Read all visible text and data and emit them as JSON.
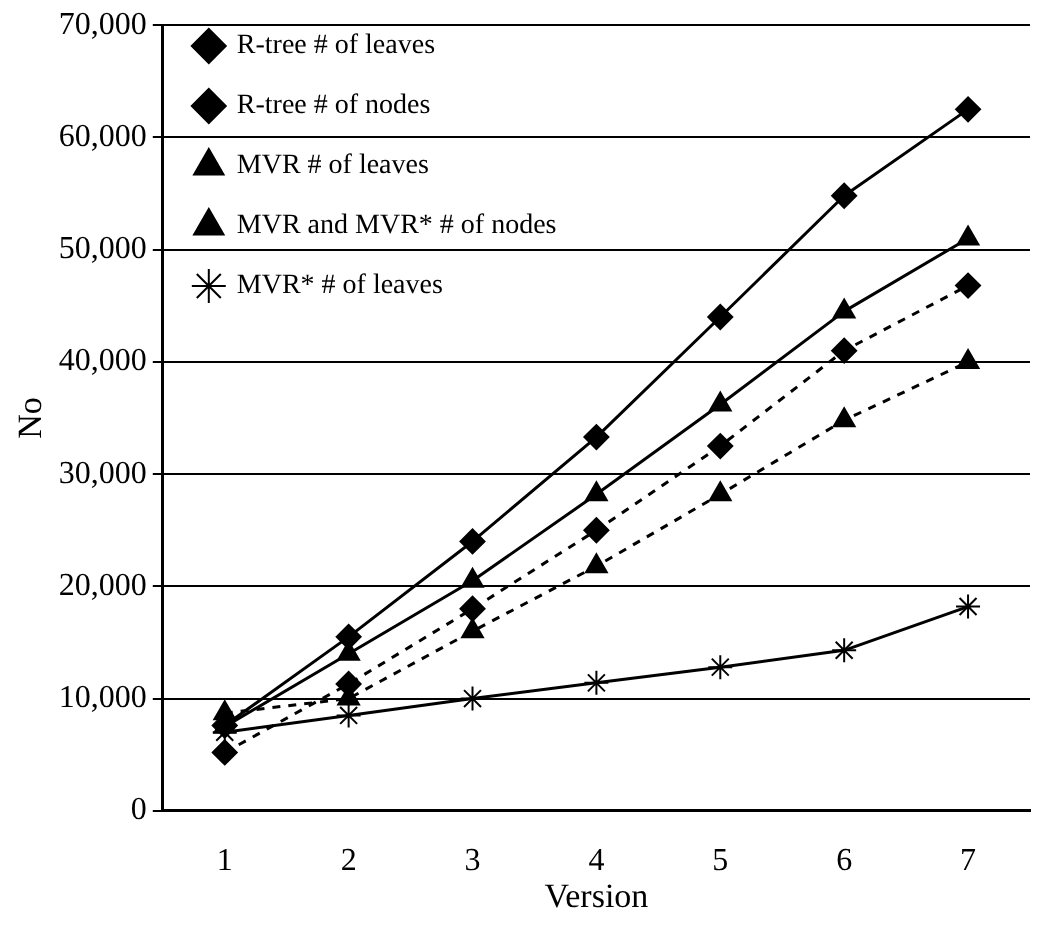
{
  "chart_data": {
    "type": "line",
    "xlabel": "Version",
    "ylabel": "No",
    "categories": [
      "1",
      "2",
      "3",
      "4",
      "5",
      "6",
      "7"
    ],
    "series": [
      {
        "name": "R-tree # of leaves",
        "color": "#000000",
        "marker": "diamond",
        "line_style": "solid",
        "values": [
          7600,
          15500,
          24000,
          33300,
          44000,
          54800,
          62500
        ]
      },
      {
        "name": "R-tree # of nodes",
        "color": "#000000",
        "marker": "diamond",
        "line_style": "dashed",
        "values": [
          5200,
          11300,
          18000,
          25000,
          32500,
          41000,
          46800
        ]
      },
      {
        "name": "MVR # of leaves",
        "color": "#000000",
        "marker": "triangle",
        "line_style": "solid",
        "values": [
          7500,
          14000,
          20500,
          28200,
          36200,
          44500,
          51000
        ]
      },
      {
        "name": "MVR and MVR* # of nodes",
        "color": "#000000",
        "marker": "triangle",
        "line_style": "dashed",
        "values": [
          8700,
          10000,
          16000,
          21800,
          28200,
          34800,
          40000
        ]
      },
      {
        "name": "MVR* # of leaves",
        "color": "#000000",
        "marker": "cross",
        "line_style": "solid",
        "values": [
          7000,
          8500,
          10000,
          11400,
          12800,
          14300,
          18200
        ]
      }
    ],
    "ylim": [
      0,
      70000
    ],
    "yticks": [
      0,
      {
        "value": 10000,
        "label": "10,000"
      },
      {
        "value": 20000,
        "label": "20,000"
      },
      {
        "value": 30000,
        "label": "30,000"
      },
      {
        "value": 40000,
        "label": "40,000"
      },
      {
        "value": 50000,
        "label": "50,000"
      },
      {
        "value": 60000,
        "label": "60,000"
      },
      {
        "value": 70000,
        "label": "70,000"
      }
    ],
    "grid": "y",
    "legend": "top left"
  }
}
